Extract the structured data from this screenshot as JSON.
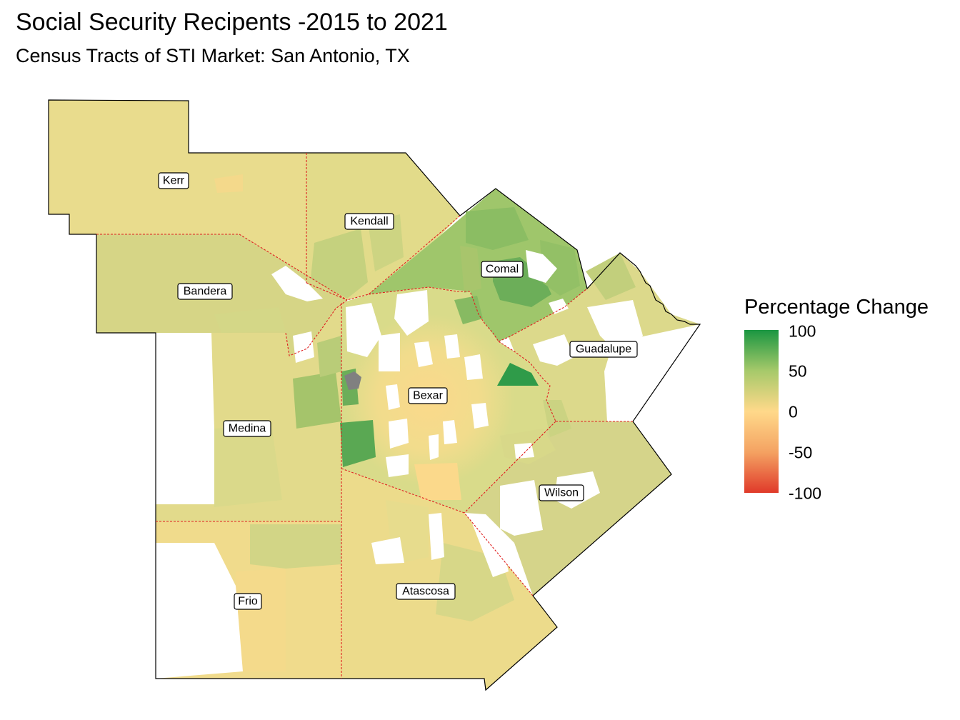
{
  "title": "Social Security Recipents -2015 to 2021",
  "subtitle": "Census Tracts of STI Market: San Antonio, TX",
  "legend": {
    "title": "Percentage Change",
    "ticks": [
      "100",
      "50",
      "0",
      "-50",
      "-100"
    ],
    "scale_min": -100,
    "scale_max": 100,
    "colors": {
      "high": "#1a9641",
      "mid_high": "#a6c96a",
      "mid": "#ffd98a",
      "mid_low": "#f4a262",
      "low": "#e03a2a",
      "na": "#808080"
    }
  },
  "counties": [
    {
      "name": "Kerr"
    },
    {
      "name": "Kendall"
    },
    {
      "name": "Comal"
    },
    {
      "name": "Bandera"
    },
    {
      "name": "Guadalupe"
    },
    {
      "name": "Bexar"
    },
    {
      "name": "Medina"
    },
    {
      "name": "Wilson"
    },
    {
      "name": "Frio"
    },
    {
      "name": "Atascosa"
    }
  ]
}
